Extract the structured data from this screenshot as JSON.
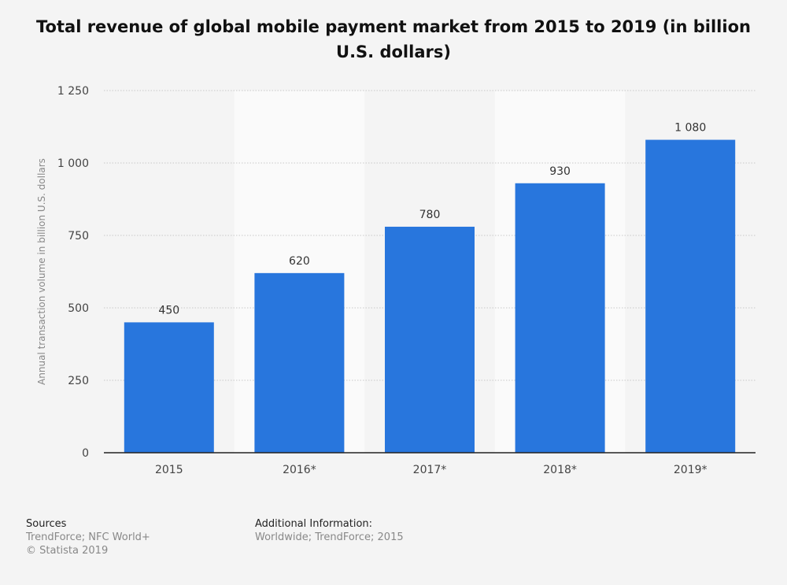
{
  "chart_data": {
    "type": "bar",
    "title": "Total revenue of global mobile payment market from 2015 to 2019 (in billion U.S. dollars)",
    "categories": [
      "2015",
      "2016*",
      "2017*",
      "2018*",
      "2019*"
    ],
    "values": [
      450,
      620,
      780,
      930,
      1080
    ],
    "value_labels": [
      "450",
      "620",
      "780",
      "930",
      "1 080"
    ],
    "ylabel": "Annual transaction volume in billion U.S. dollars",
    "xlabel": "",
    "ylim": [
      0,
      1250
    ],
    "yticks": [
      0,
      250,
      500,
      750,
      1000,
      1250
    ],
    "ytick_labels": [
      "0",
      "250",
      "500",
      "750",
      "1 000",
      "1 250"
    ],
    "bar_color": "#2876dd",
    "grid": true
  },
  "sources": {
    "heading": "Sources",
    "line1": "TrendForce; NFC World+",
    "line2": "© Statista 2019"
  },
  "additional_info": {
    "heading": "Additional Information:",
    "text": "Worldwide; TrendForce; 2015"
  }
}
